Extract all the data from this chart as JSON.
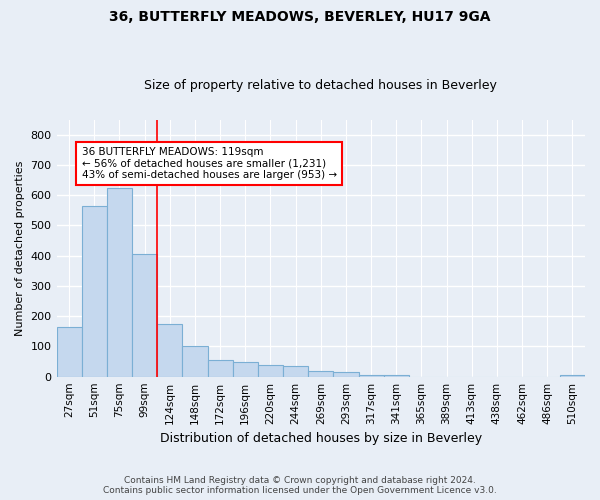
{
  "title1": "36, BUTTERFLY MEADOWS, BEVERLEY, HU17 9GA",
  "title2": "Size of property relative to detached houses in Beverley",
  "xlabel": "Distribution of detached houses by size in Beverley",
  "ylabel": "Number of detached properties",
  "footer1": "Contains HM Land Registry data © Crown copyright and database right 2024.",
  "footer2": "Contains public sector information licensed under the Open Government Licence v3.0.",
  "bin_labels": [
    "27sqm",
    "51sqm",
    "75sqm",
    "99sqm",
    "124sqm",
    "148sqm",
    "172sqm",
    "196sqm",
    "220sqm",
    "244sqm",
    "269sqm",
    "293sqm",
    "317sqm",
    "341sqm",
    "365sqm",
    "389sqm",
    "413sqm",
    "438sqm",
    "462sqm",
    "486sqm",
    "510sqm"
  ],
  "bar_values": [
    165,
    565,
    625,
    405,
    175,
    100,
    55,
    50,
    40,
    35,
    20,
    15,
    5,
    5,
    0,
    0,
    0,
    0,
    0,
    0,
    5
  ],
  "bar_color": "#c5d8ee",
  "bar_edge_color": "#7bafd4",
  "background_color": "#e8eef6",
  "grid_color": "#d8e0ea",
  "vline_x": 3.5,
  "vline_color": "red",
  "annotation_text": "36 BUTTERFLY MEADOWS: 119sqm\n← 56% of detached houses are smaller (1,231)\n43% of semi-detached houses are larger (953) →",
  "annotation_box_color": "white",
  "annotation_box_edge_color": "red",
  "ylim": [
    0,
    850
  ],
  "yticks": [
    0,
    100,
    200,
    300,
    400,
    500,
    600,
    700,
    800
  ]
}
